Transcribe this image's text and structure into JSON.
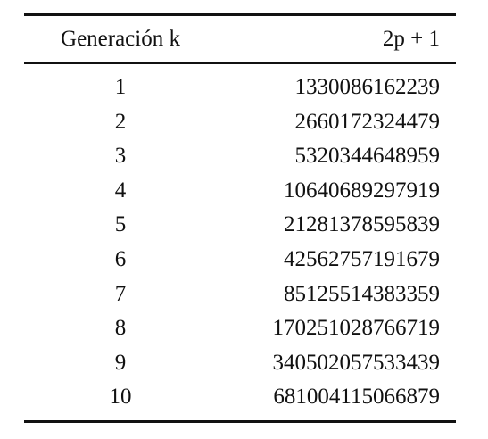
{
  "table": {
    "header": [
      "Generación k",
      "2p + 1"
    ],
    "rows": [
      [
        1,
        1330086162239
      ],
      [
        2,
        2660172324479
      ],
      [
        3,
        5320344648959
      ],
      [
        4,
        10640689297919
      ],
      [
        5,
        21281378595839
      ],
      [
        6,
        42562757191679
      ],
      [
        7,
        85125514383359
      ],
      [
        8,
        170251028766719
      ],
      [
        9,
        340502057533439
      ],
      [
        10,
        681004115066879
      ]
    ]
  }
}
